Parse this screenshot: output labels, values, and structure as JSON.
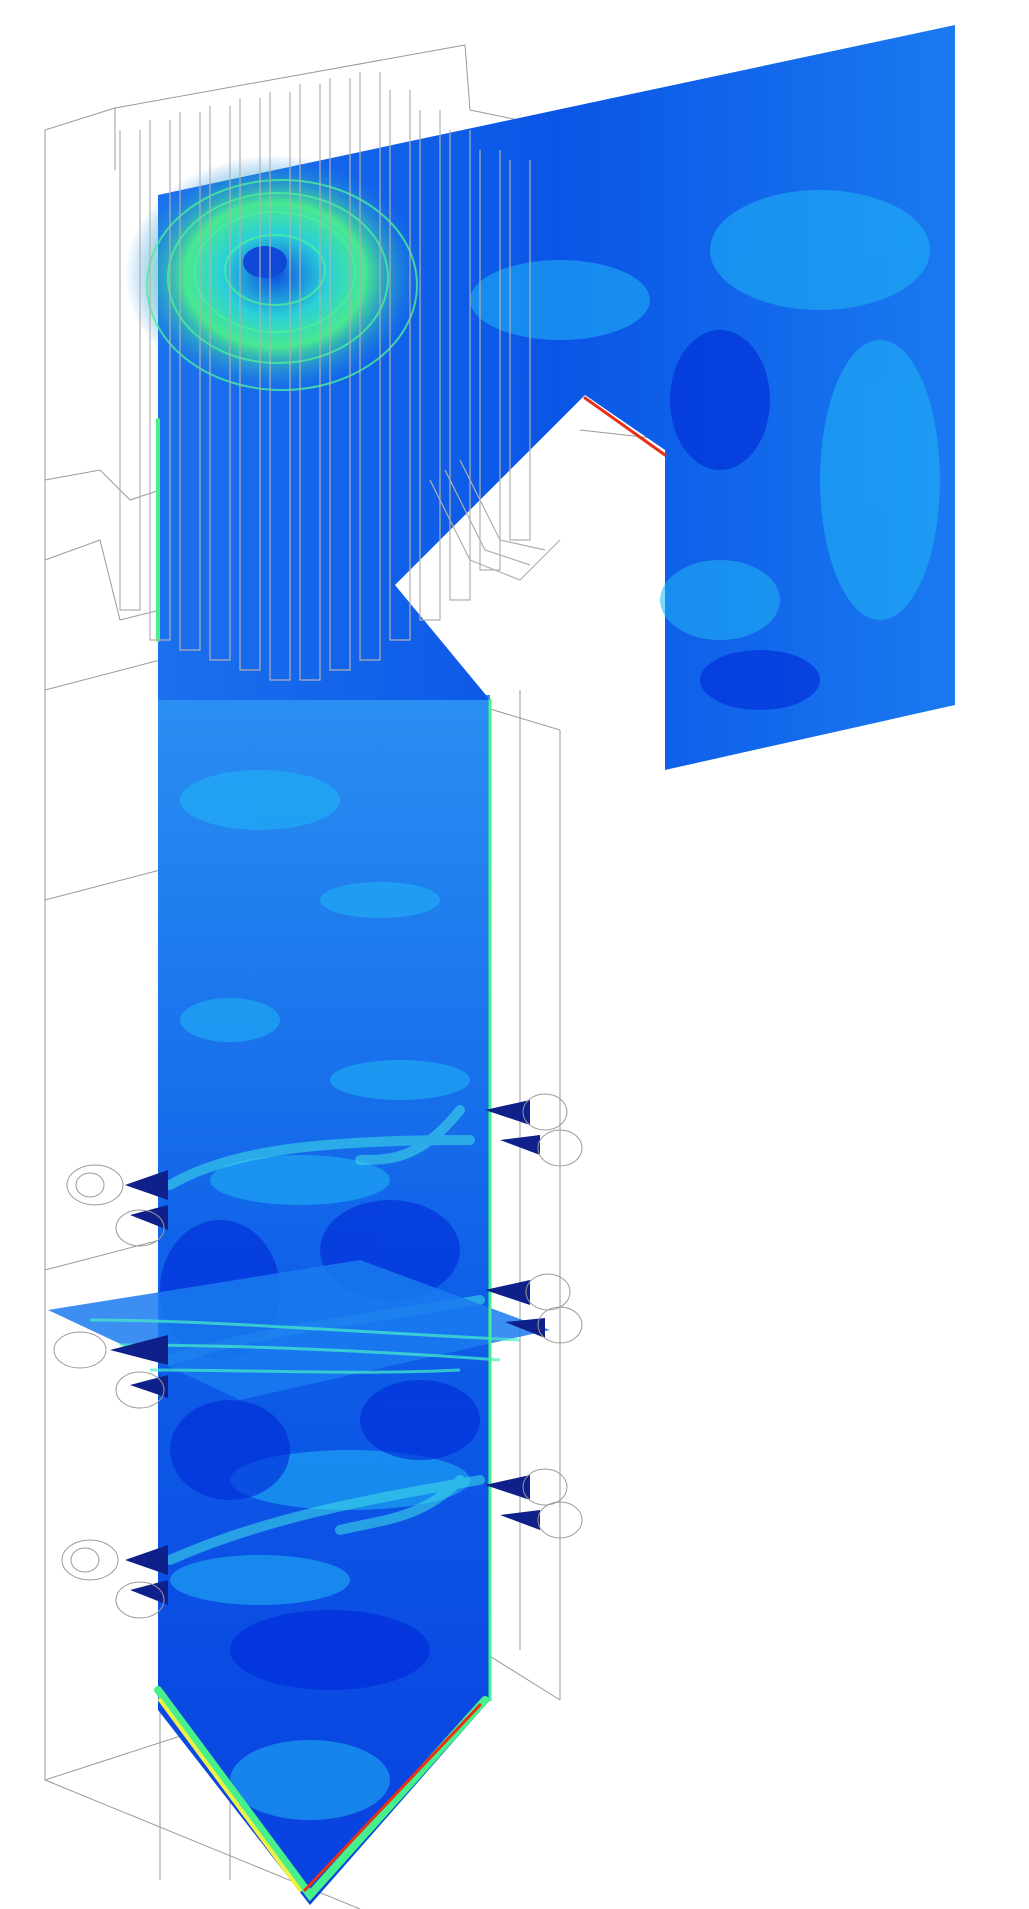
{
  "diagram": {
    "kind": "CFD velocity contour of a boiler furnace",
    "colors": {
      "background": "#ffffff",
      "wireframe": "#9a9a9a",
      "tube": "#b0b0b0",
      "deep_blue": "#0028d8",
      "blue": "#0a55e6",
      "mid_blue": "#1a7af0",
      "cyan": "#20b6f5",
      "aqua": "#3ee0e8",
      "green": "#46f08a",
      "yellow": "#f0f040",
      "red": "#e83018",
      "burner_blue": "#10208a"
    },
    "burner_levels": 3,
    "burners_per_side_level": 2
  }
}
